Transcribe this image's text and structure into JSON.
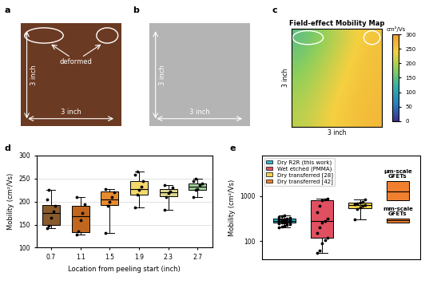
{
  "photos": [
    {
      "panel": "a",
      "width_label": "3 inch",
      "height_label": "3 inch",
      "annotation": "deformed",
      "color": "#6b3a22"
    },
    {
      "panel": "b",
      "width_label": "3 inch",
      "height_label": "3 inch",
      "color": "#b4b4b4"
    }
  ],
  "chart_data": [
    {
      "panel": "c",
      "type": "heatmap",
      "title": "Field-effect Mobility Map",
      "xlabel": "3 inch",
      "ylabel": "3 inch",
      "tick_labels": false,
      "cells": [
        [
          150,
          175,
          205,
          235,
          255
        ],
        [
          165,
          190,
          220,
          245,
          260
        ],
        [
          180,
          205,
          230,
          250,
          262
        ],
        [
          195,
          215,
          240,
          255,
          265
        ],
        [
          205,
          225,
          245,
          258,
          268
        ]
      ],
      "colorbar_range": [
        0,
        300
      ],
      "colorbar_ticks": [
        0,
        50,
        100,
        150,
        200,
        250,
        300
      ],
      "colorbar_label": "cm²/Vs"
    },
    {
      "panel": "d",
      "type": "box",
      "xlabel": "Location from peeling start (inch)",
      "ylabel": "Mobility (cm²/Vs)",
      "categories": [
        "0.7",
        "1.1",
        "1.5",
        "1.9",
        "2.3",
        "2.7"
      ],
      "ylim": [
        100,
        300
      ],
      "yticks": [
        100,
        150,
        200,
        250,
        300
      ],
      "grid": true,
      "colors": [
        "#8b5a2b",
        "#c0661f",
        "#e88a2e",
        "#f5d86a",
        "#e0d78f",
        "#9fd09a"
      ],
      "boxes": [
        {
          "whislo": 142,
          "q1": 150,
          "med": 175,
          "q3": 193,
          "whishi": 225,
          "points": [
            142,
            148,
            165,
            178,
            190,
            205,
            225
          ]
        },
        {
          "whislo": 128,
          "q1": 133,
          "med": 168,
          "q3": 190,
          "whishi": 210,
          "points": [
            128,
            135,
            160,
            175,
            195,
            210
          ]
        },
        {
          "whislo": 132,
          "q1": 192,
          "med": 205,
          "q3": 222,
          "whishi": 228,
          "points": [
            132,
            190,
            200,
            210,
            220,
            228
          ]
        },
        {
          "whislo": 188,
          "q1": 215,
          "med": 228,
          "q3": 245,
          "whishi": 265,
          "points": [
            188,
            215,
            225,
            232,
            245,
            258,
            265
          ]
        },
        {
          "whislo": 182,
          "q1": 212,
          "med": 220,
          "q3": 228,
          "whishi": 235,
          "points": [
            182,
            210,
            218,
            222,
            230,
            235
          ]
        },
        {
          "whislo": 210,
          "q1": 225,
          "med": 232,
          "q3": 240,
          "whishi": 250,
          "points": [
            210,
            225,
            228,
            235,
            240,
            245,
            250
          ]
        }
      ]
    },
    {
      "panel": "e",
      "type": "box",
      "ylabel": "Mobility (cm²/Vs)",
      "log": "y",
      "ylim": [
        40,
        8000
      ],
      "yticks": [
        100,
        1000
      ],
      "legend": "upper left",
      "grid": false,
      "tick_labels": "y",
      "series": [
        {
          "name": "Dry R2R (this work)",
          "color": "#30b5c9",
          "boxes": [
            {
              "whislo": 200,
              "q1": 265,
              "med": 285,
              "q3": 320,
              "whishi": 370,
              "points": [
                200,
                210,
                220,
                230,
                240,
                250,
                255,
                260,
                265,
                270,
                275,
                280,
                285,
                290,
                295,
                300,
                305,
                310,
                320,
                330,
                340,
                355,
                370
              ]
            }
          ]
        },
        {
          "name": "Wet etched (PMMA)",
          "color": "#e05060",
          "boxes": [
            {
              "whislo": 55,
              "q1": 120,
              "med": 280,
              "q3": 800,
              "whishi": 900,
              "points": [
                55,
                62,
                90,
                105,
                120,
                150,
                200,
                260,
                280,
                320,
                450,
                600,
                800,
                850,
                900
              ]
            }
          ]
        },
        {
          "name": "Dry transferred [28]",
          "color": "#f2d24a",
          "boxes": [
            {
              "whislo": 300,
              "q1": 550,
              "med": 640,
              "q3": 720,
              "whishi": 850,
              "points": [
                300,
                520,
                560,
                600,
                640,
                660,
                700,
                720,
                760,
                850
              ]
            }
          ]
        },
        {
          "name": "Dry transferred [42]",
          "color": "#f08030",
          "boxes": [
            {
              "whislo": 800,
              "q1": 800,
              "med": 1300,
              "q3": 2200,
              "whishi": 2200,
              "label": "μm-scale\nGFETs"
            },
            {
              "whislo": 260,
              "q1": 260,
              "med": 290,
              "q3": 320,
              "whishi": 320,
              "label": "mm-scale\nGFETs"
            }
          ]
        }
      ]
    }
  ]
}
